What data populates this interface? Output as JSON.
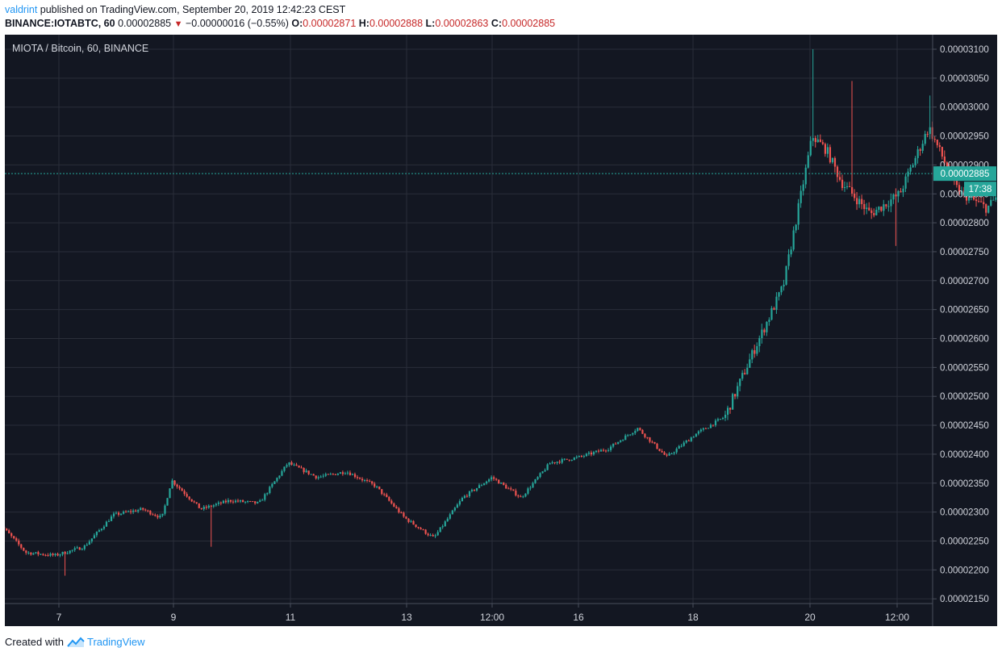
{
  "header": {
    "author": "valdrint",
    "published_text": " published on TradingView.com, September 20, 2019 12:42:23 CEST",
    "symbol": "BINANCE:IOTABTC, 60",
    "last": "0.00002885",
    "change": "−0.00000016 (−0.55%)",
    "o_label": "O:",
    "o_value": "0.00002871",
    "h_label": "H:",
    "h_value": "0.00002888",
    "l_label": "L:",
    "l_value": "0.00002863",
    "c_label": "C:",
    "c_value": "0.00002885"
  },
  "footer": {
    "created_with": "Created with",
    "brand": "TradingView"
  },
  "chart_data": {
    "type": "candlestick",
    "title": "MIOTA / Bitcoin, 60, BINANCE",
    "x_tick_labels": [
      "7",
      "9",
      "11",
      "13",
      "12:00",
      "16",
      "18",
      "20",
      "12:00"
    ],
    "y_tick_labels": [
      "0.00003100",
      "0.00003050",
      "0.00003000",
      "0.00002950",
      "0.00002900",
      "0.00002850",
      "0.00002800",
      "0.00002750",
      "0.00002700",
      "0.00002650",
      "0.00002600",
      "0.00002550",
      "0.00002500",
      "0.00002450",
      "0.00002400",
      "0.00002350",
      "0.00002300",
      "0.00002250",
      "0.00002200",
      "0.00002150"
    ],
    "ylim": [
      2.14e-05,
      3.12e-05
    ],
    "grid": true,
    "last_price_label": "0.00002885",
    "countdown_label": "17:38",
    "colors": {
      "background": "#131722",
      "grid": "#2a2e39",
      "up": "#26a69a",
      "down": "#ef5350",
      "axis_text": "#d1d4dc",
      "price_line": "#26a69a"
    },
    "close_path": [
      {
        "date": "2019-09-06 00:00",
        "close": 2.285e-05
      },
      {
        "date": "2019-09-06 12:00",
        "close": 2.23e-05
      },
      {
        "date": "2019-09-07 00:00",
        "close": 2.225e-05
      },
      {
        "date": "2019-09-07 12:00",
        "close": 2.24e-05
      },
      {
        "date": "2019-09-08 00:00",
        "close": 2.295e-05
      },
      {
        "date": "2019-09-08 12:00",
        "close": 2.305e-05
      },
      {
        "date": "2019-09-08 20:00",
        "close": 2.29e-05
      },
      {
        "date": "2019-09-09 00:00",
        "close": 2.355e-05
      },
      {
        "date": "2019-09-09 12:00",
        "close": 2.305e-05
      },
      {
        "date": "2019-09-10 00:00",
        "close": 2.32e-05
      },
      {
        "date": "2019-09-10 12:00",
        "close": 2.315e-05
      },
      {
        "date": "2019-09-11 00:00",
        "close": 2.385e-05
      },
      {
        "date": "2019-09-11 12:00",
        "close": 2.36e-05
      },
      {
        "date": "2019-09-12 00:00",
        "close": 2.37e-05
      },
      {
        "date": "2019-09-12 12:00",
        "close": 2.345e-05
      },
      {
        "date": "2019-09-13 00:00",
        "close": 2.29e-05
      },
      {
        "date": "2019-09-13 12:00",
        "close": 2.255e-05
      },
      {
        "date": "2019-09-14 00:00",
        "close": 2.325e-05
      },
      {
        "date": "2019-09-14 12:00",
        "close": 2.36e-05
      },
      {
        "date": "2019-09-15 00:00",
        "close": 2.325e-05
      },
      {
        "date": "2019-09-15 12:00",
        "close": 2.385e-05
      },
      {
        "date": "2019-09-16 00:00",
        "close": 2.395e-05
      },
      {
        "date": "2019-09-16 12:00",
        "close": 2.41e-05
      },
      {
        "date": "2019-09-17 00:00",
        "close": 2.445e-05
      },
      {
        "date": "2019-09-17 12:00",
        "close": 2.395e-05
      },
      {
        "date": "2019-09-18 00:00",
        "close": 2.435e-05
      },
      {
        "date": "2019-09-18 12:00",
        "close": 2.465e-05
      },
      {
        "date": "2019-09-19 00:00",
        "close": 2.58e-05
      },
      {
        "date": "2019-09-19 12:00",
        "close": 2.69e-05
      },
      {
        "date": "2019-09-20 00:00",
        "close": 2.95e-05
      },
      {
        "date": "2019-09-20 06:00",
        "close": 2.925e-05
      },
      {
        "date": "2019-09-20 12:00",
        "close": 2.87e-05
      },
      {
        "date": "2019-09-21 00:00",
        "close": 2.815e-05
      },
      {
        "date": "2019-09-21 12:00",
        "close": 2.85e-05
      },
      {
        "date": "2019-09-22 00:00",
        "close": 2.965e-05
      },
      {
        "date": "2019-09-22 12:00",
        "close": 2.855e-05
      },
      {
        "date": "2019-09-23 00:00",
        "close": 2.825e-05
      },
      {
        "date": "2019-09-23 12:00",
        "close": 2.885e-05
      }
    ],
    "spikes": [
      {
        "date": "2019-09-20 00:00",
        "high": 3.1e-05
      },
      {
        "date": "2019-09-20 16:00",
        "high": 3.045e-05
      },
      {
        "date": "2019-09-22 00:00",
        "high": 3.02e-05
      },
      {
        "date": "2019-09-21 10:00",
        "low": 2.76e-05
      },
      {
        "date": "2019-09-09 16:00",
        "low": 2.24e-05
      },
      {
        "date": "2019-09-07 04:00",
        "low": 2.19e-05
      }
    ]
  }
}
